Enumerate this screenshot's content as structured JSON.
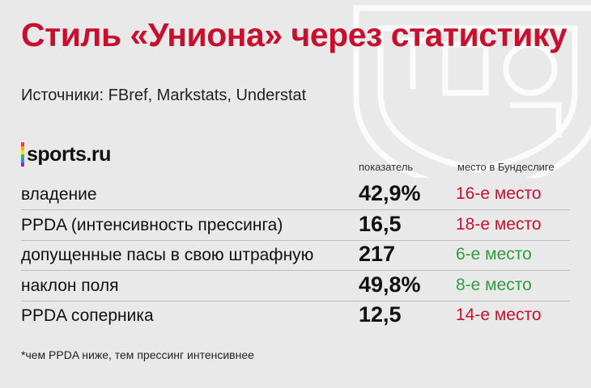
{
  "title": "Стиль «Униона» через статистику",
  "source": "Источники: FBref, Markstats, Understat",
  "logo": {
    "text": "sports.ru",
    "bar_colors": [
      "#e83e3e",
      "#f5a623",
      "#f8e71c",
      "#4caf50",
      "#2196f3",
      "#9c27b0"
    ]
  },
  "columns": {
    "value_header": "показатель",
    "rank_header": "место в Бундеслиге"
  },
  "colors": {
    "title": "#c8102e",
    "rank_bad": "#c8102e",
    "rank_good": "#2e9e3e"
  },
  "rows": [
    {
      "label": "владение",
      "value": "42,9%",
      "rank": "16-е место",
      "rank_color": "#c8102e"
    },
    {
      "label": "PPDA (интенсивность прессинга)",
      "value": "16,5",
      "rank": "18-е место",
      "rank_color": "#c8102e"
    },
    {
      "label": "допущенные пасы в свою штрафную",
      "value": "217",
      "rank": "6-е место",
      "rank_color": "#2e9e3e"
    },
    {
      "label": "наклон поля",
      "value": "49,8%",
      "rank": "8-е место",
      "rank_color": "#2e9e3e"
    },
    {
      "label": "PPDA соперника",
      "value": "12,5",
      "rank": "14-е место",
      "rank_color": "#c8102e"
    }
  ],
  "footnote": "*чем PPDA ниже, тем прессинг интенсивнее"
}
